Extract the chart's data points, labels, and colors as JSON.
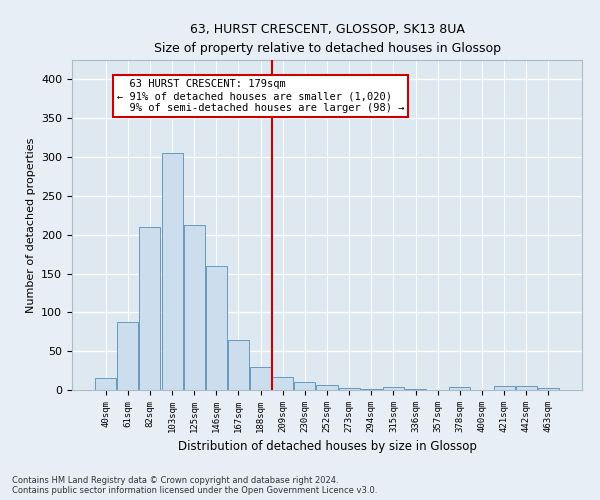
{
  "title": "63, HURST CRESCENT, GLOSSOP, SK13 8UA",
  "subtitle": "Size of property relative to detached houses in Glossop",
  "xlabel": "Distribution of detached houses by size in Glossop",
  "ylabel": "Number of detached properties",
  "bar_color": "#ccdded",
  "bar_edge_color": "#6699bb",
  "background_color": "#dde8f0",
  "fig_background_color": "#e8eef5",
  "grid_color": "#ffffff",
  "categories": [
    "40sqm",
    "61sqm",
    "82sqm",
    "103sqm",
    "125sqm",
    "146sqm",
    "167sqm",
    "188sqm",
    "209sqm",
    "230sqm",
    "252sqm",
    "273sqm",
    "294sqm",
    "315sqm",
    "336sqm",
    "357sqm",
    "378sqm",
    "400sqm",
    "421sqm",
    "442sqm",
    "463sqm"
  ],
  "values": [
    15,
    88,
    210,
    305,
    212,
    160,
    64,
    30,
    17,
    10,
    6,
    3,
    1,
    4,
    1,
    0,
    4,
    0,
    5,
    5,
    3
  ],
  "ylim": [
    0,
    425
  ],
  "yticks": [
    0,
    50,
    100,
    150,
    200,
    250,
    300,
    350,
    400
  ],
  "property_line_x": 7.5,
  "annotation_text": "  63 HURST CRESCENT: 179sqm\n← 91% of detached houses are smaller (1,020)\n  9% of semi-detached houses are larger (98) →",
  "annotation_box_color": "#ffffff",
  "annotation_box_edge_color": "#cc0000",
  "property_line_color": "#cc0000",
  "footer_line1": "Contains HM Land Registry data © Crown copyright and database right 2024.",
  "footer_line2": "Contains public sector information licensed under the Open Government Licence v3.0."
}
